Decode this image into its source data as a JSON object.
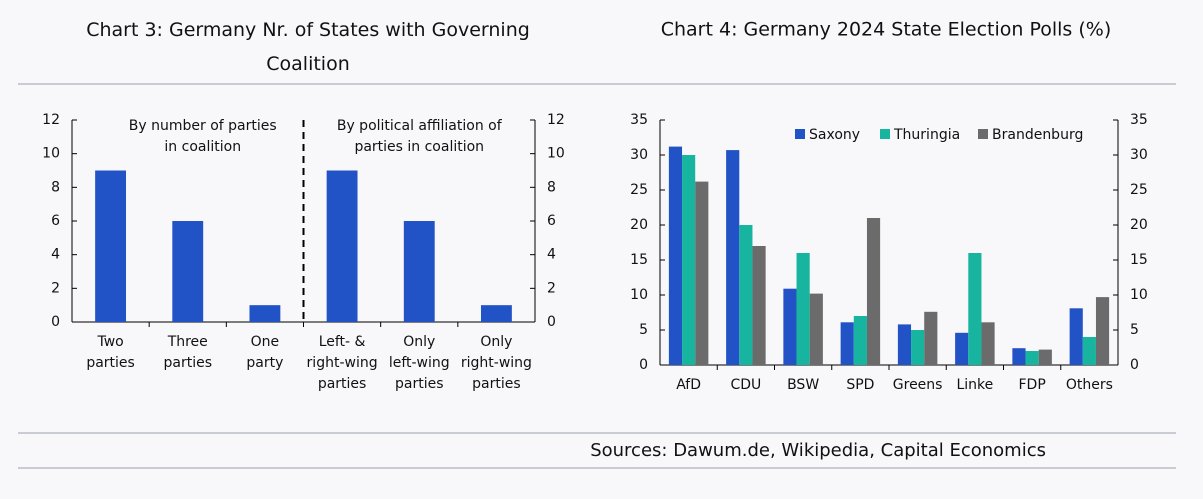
{
  "chart_data": [
    {
      "type": "bar",
      "title": "Chart 3: Germany Nr. of States with Governing\nCoalition",
      "categories": [
        "Two\nparties",
        "Three\nparties",
        "One\nparty",
        "Left- &\nright-wing\nparties",
        "Only\nleft-wing\nparties",
        "Only\nright-wing\nparties"
      ],
      "values": [
        9,
        6,
        1,
        9,
        6,
        1
      ],
      "color": "#2152c6",
      "ylim": [
        0,
        12
      ],
      "yticks": [
        0,
        2,
        4,
        6,
        8,
        10,
        12
      ],
      "annotations": [
        "By number of parties\nin coalition",
        "By political affiliation of\nparties in coalition"
      ]
    },
    {
      "type": "bar",
      "title": "Chart 4: Germany 2024 State Election Polls (%)",
      "categories": [
        "AfD",
        "CDU",
        "BSW",
        "SPD",
        "Greens",
        "Linke",
        "FDP",
        "Others"
      ],
      "series": [
        {
          "name": "Saxony",
          "color": "#2152c6",
          "values": [
            31.2,
            30.7,
            10.9,
            6.1,
            5.8,
            4.6,
            2.4,
            8.1
          ]
        },
        {
          "name": "Thuringia",
          "color": "#17b5a0",
          "values": [
            30,
            20,
            16,
            7,
            5,
            16,
            2,
            4
          ]
        },
        {
          "name": "Brandenburg",
          "color": "#6b6b6b",
          "values": [
            26.2,
            17,
            10.2,
            21,
            7.6,
            6.1,
            2.2,
            9.7
          ]
        }
      ],
      "ylim": [
        0,
        35
      ],
      "yticks": [
        0,
        5,
        10,
        15,
        20,
        25,
        30,
        35
      ],
      "legend": "top-right"
    }
  ],
  "source": "Sources: Dawum.de, Wikipedia, Capital Economics"
}
